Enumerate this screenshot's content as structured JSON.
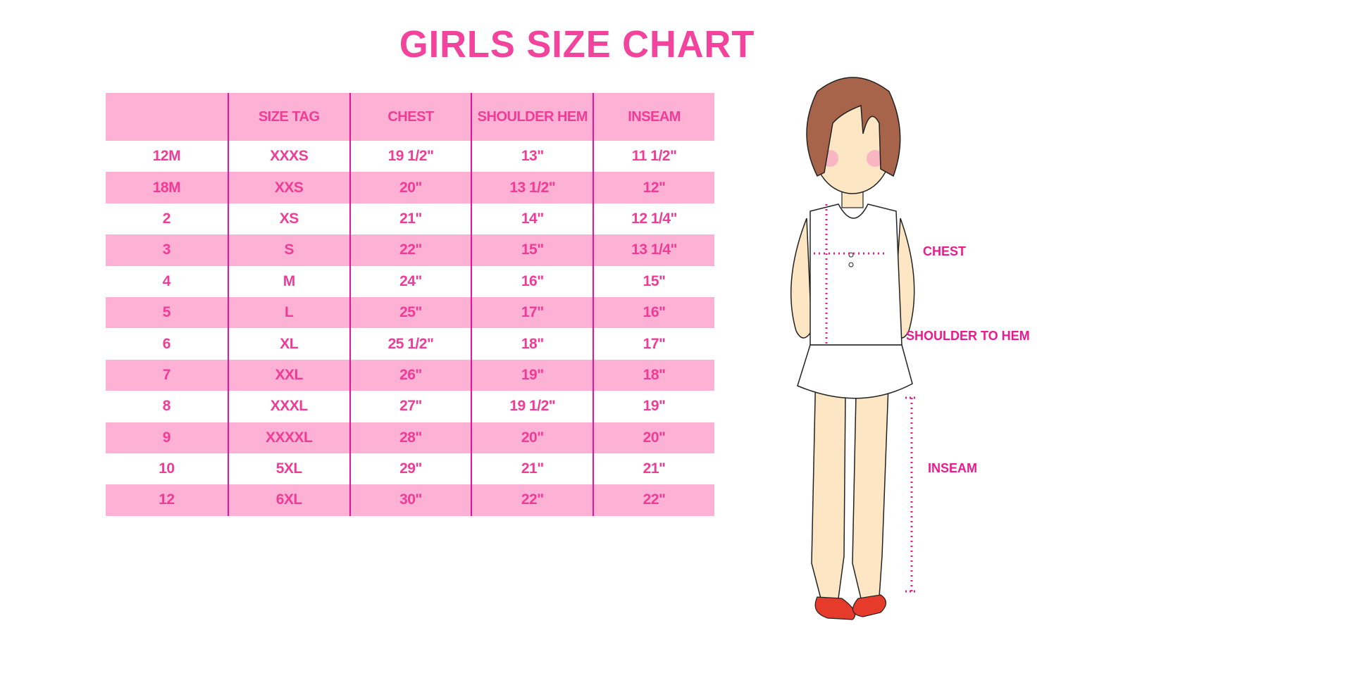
{
  "title": "GIRLS SIZE CHART",
  "table": {
    "headers": [
      "",
      "SIZE TAG",
      "CHEST",
      "SHOULDER HEM",
      "INSEAM"
    ],
    "rows": [
      [
        "12M",
        "XXXS",
        "19 1/2\"",
        "13\"",
        "11 1/2\""
      ],
      [
        "18M",
        "XXS",
        "20\"",
        "13 1/2\"",
        "12\""
      ],
      [
        "2",
        "XS",
        "21\"",
        "14\"",
        "12 1/4\""
      ],
      [
        "3",
        "S",
        "22\"",
        "15\"",
        "13 1/4\""
      ],
      [
        "4",
        "M",
        "24\"",
        "16\"",
        "15\""
      ],
      [
        "5",
        "L",
        "25\"",
        "17\"",
        "16\""
      ],
      [
        "6",
        "XL",
        "25 1/2\"",
        "18\"",
        "17\""
      ],
      [
        "7",
        "XXL",
        "26\"",
        "19\"",
        "18\""
      ],
      [
        "8",
        "XXXL",
        "27\"",
        "19 1/2\"",
        "19\""
      ],
      [
        "9",
        "XXXXL",
        "28\"",
        "20\"",
        "20\""
      ],
      [
        "10",
        "5XL",
        "29\"",
        "21\"",
        "21\""
      ],
      [
        "12",
        "6XL",
        "30\"",
        "22\"",
        "22\""
      ]
    ]
  },
  "figure": {
    "labels": {
      "chest": "CHEST",
      "shoulder_to_hem": "SHOULDER TO HEM",
      "inseam": "INSEAM"
    }
  },
  "colors": {
    "accent": "#f03c96",
    "row_pink": "#fdb1d4",
    "divider": "#e8139a"
  }
}
